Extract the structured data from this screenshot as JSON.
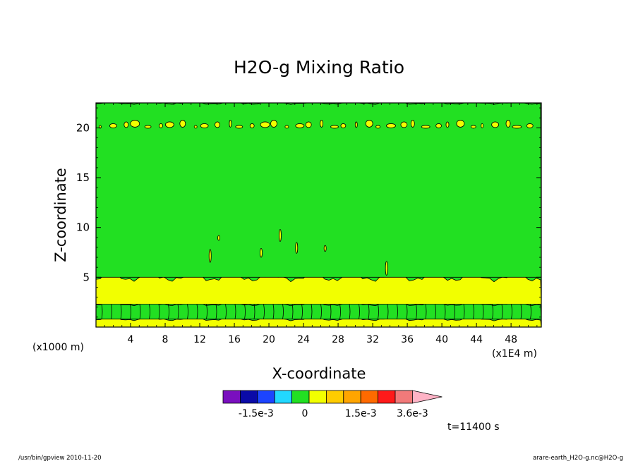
{
  "chart_data": {
    "type": "heatmap",
    "title": "H2O-g Mixing Ratio",
    "xlabel": "X-coordinate",
    "ylabel": "Z-coordinate",
    "x_unit_left": "(x1000 m)",
    "x_unit_right": "(x1E4 m)",
    "xlim": [
      0,
      51.5
    ],
    "ylim": [
      0,
      22.5
    ],
    "x_ticks": [
      4,
      8,
      12,
      16,
      20,
      24,
      28,
      32,
      36,
      40,
      44,
      48
    ],
    "x_tick_labels": [
      "4",
      "8",
      "12",
      "16",
      "20",
      "24",
      "28",
      "32",
      "36",
      "40",
      "44",
      "48"
    ],
    "y_ticks": [
      5,
      10,
      15,
      20
    ],
    "y_tick_labels": [
      "5",
      "10",
      "15",
      "20"
    ],
    "bands": [
      {
        "z_min": 0.0,
        "z_max": 0.8,
        "level": "positive"
      },
      {
        "z_min": 0.8,
        "z_max": 2.3,
        "level": "zero"
      },
      {
        "z_min": 2.3,
        "z_max": 5.0,
        "level": "positive"
      },
      {
        "z_min": 5.0,
        "z_max": 22.5,
        "level": "zero"
      }
    ],
    "upper_patches_z": 20.1,
    "colorbar": {
      "colors": [
        "#7a0fbf",
        "#0a0aa8",
        "#1c44ff",
        "#22d8ff",
        "#22e022",
        "#f2ff00",
        "#ffcc00",
        "#ffa500",
        "#ff6a00",
        "#ff1a1a",
        "#f27a7a",
        "#ffb3c6"
      ],
      "tick_labels": [
        "-1.5e-3",
        "0",
        "1.5e-3",
        "3.6e-3"
      ]
    },
    "time_label": "t=11400 s"
  },
  "footer": {
    "left": "/usr/bin/gpview   2010-11-20",
    "right": "arare-earth_H2O-g.nc@H2O-g"
  },
  "colors": {
    "field_zero": "#22e022",
    "field_positive": "#f2ff00"
  }
}
